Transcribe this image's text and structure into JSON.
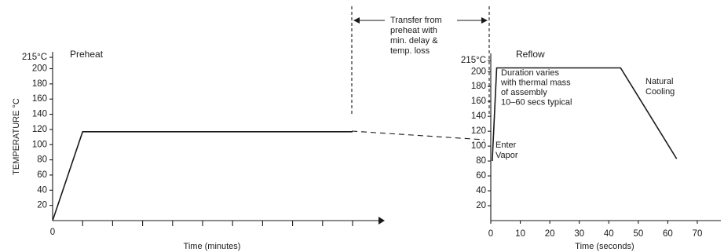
{
  "chart_data": [
    {
      "type": "line",
      "name": "preheat",
      "title": "Preheat",
      "ylabel": "TEMPERATURE °C",
      "xlabel": "Time (minutes)",
      "ylim": [
        0,
        215
      ],
      "yticks": [
        "20",
        "40",
        "60",
        "80",
        "100",
        "120",
        "140",
        "160",
        "180",
        "200",
        "215°C"
      ],
      "x_origin_label": "0",
      "x_ticks_unlabeled": 10,
      "series": [
        {
          "x": [
            0,
            1,
            10
          ],
          "y": [
            0,
            117,
            117
          ]
        }
      ]
    },
    {
      "type": "line",
      "name": "reflow",
      "title": "Reflow",
      "xlabel": "Time (seconds)",
      "xlim": [
        0,
        80
      ],
      "ylim": [
        0,
        215
      ],
      "xticks": [
        "0",
        "10",
        "20",
        "30",
        "40",
        "50",
        "60",
        "70"
      ],
      "yticks": [
        "20",
        "40",
        "60",
        "80",
        "100",
        "120",
        "140",
        "160",
        "180",
        "200",
        "215°C"
      ],
      "series": [
        {
          "x": [
            0.5,
            2,
            44,
            63
          ],
          "y": [
            80,
            205,
            205,
            83
          ]
        }
      ],
      "annotations": {
        "duration": [
          "Duration varies",
          "with thermal mass",
          "of assembly",
          "10–60 secs typical"
        ],
        "cooling": [
          "Natural",
          "Cooling"
        ],
        "enter_vapor": [
          "Enter",
          "Vapor"
        ]
      }
    }
  ],
  "transfer": [
    "Transfer from",
    "preheat with",
    "min. delay &",
    "temp. loss"
  ]
}
